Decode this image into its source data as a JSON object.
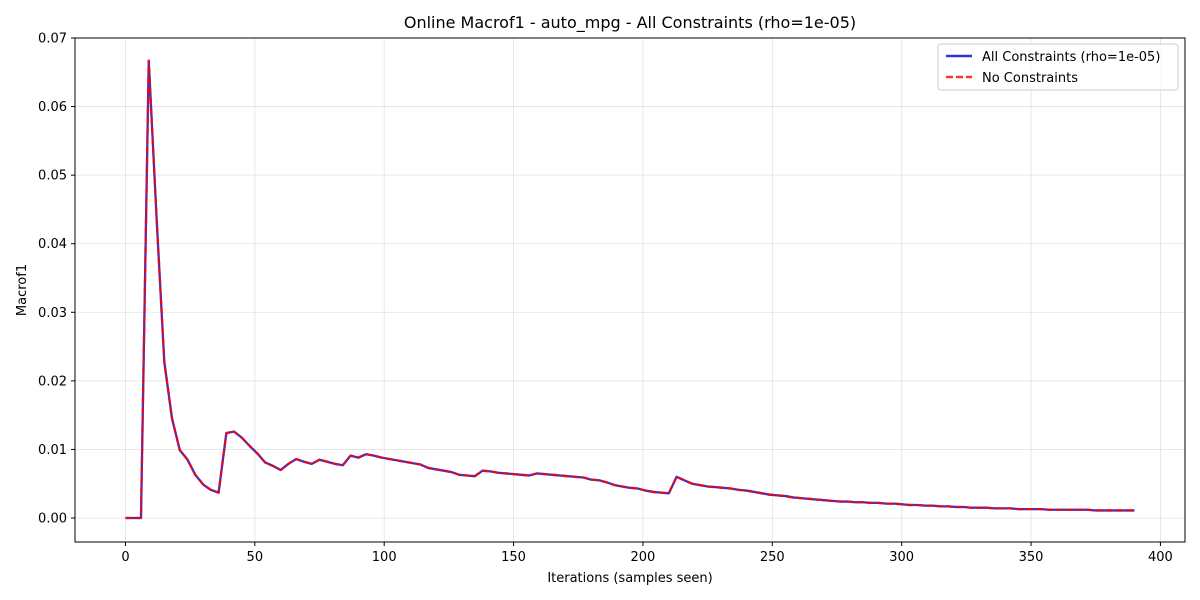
{
  "chart_data": {
    "type": "line",
    "title": "Online Macrof1 - auto_mpg - All Constraints (rho=1e-05)",
    "xlabel": "Iterations (samples seen)",
    "ylabel": "Macrof1",
    "xlim": [
      -19.5,
      409.5
    ],
    "ylim": [
      -0.0035,
      0.07
    ],
    "xticks": [
      0,
      50,
      100,
      150,
      200,
      250,
      300,
      350,
      400
    ],
    "yticks": [
      0.0,
      0.01,
      0.02,
      0.03,
      0.04,
      0.05,
      0.06,
      0.07
    ],
    "xtick_labels": [
      "0",
      "50",
      "100",
      "150",
      "200",
      "250",
      "300",
      "350",
      "400"
    ],
    "ytick_labels": [
      "0.00",
      "0.01",
      "0.02",
      "0.03",
      "0.04",
      "0.05",
      "0.06",
      "0.07"
    ],
    "grid": true,
    "legend_position": "top-right",
    "x": [
      0,
      3,
      6,
      9,
      12,
      15,
      18,
      21,
      24,
      27,
      30,
      33,
      36,
      39,
      42,
      45,
      48,
      51,
      54,
      57,
      60,
      63,
      66,
      69,
      72,
      75,
      78,
      81,
      84,
      87,
      90,
      93,
      96,
      99,
      102,
      105,
      108,
      111,
      114,
      117,
      120,
      123,
      126,
      129,
      132,
      135,
      138,
      141,
      144,
      147,
      150,
      153,
      156,
      159,
      162,
      165,
      168,
      171,
      174,
      177,
      180,
      183,
      186,
      189,
      192,
      195,
      198,
      201,
      204,
      207,
      210,
      213,
      216,
      219,
      222,
      225,
      228,
      231,
      234,
      237,
      240,
      243,
      246,
      249,
      252,
      255,
      258,
      261,
      264,
      267,
      270,
      273,
      276,
      279,
      282,
      285,
      288,
      291,
      294,
      297,
      300,
      303,
      306,
      309,
      312,
      315,
      318,
      321,
      324,
      327,
      330,
      333,
      336,
      339,
      342,
      345,
      348,
      351,
      354,
      357,
      360,
      363,
      366,
      369,
      372,
      375,
      378,
      381,
      384,
      387,
      390
    ],
    "series": [
      {
        "name": "All Constraints (rho=1e-05)",
        "color": "#0000cc",
        "style": "solid",
        "values": [
          0.0,
          0.0,
          0.0,
          0.0667,
          0.044,
          0.0228,
          0.0145,
          0.0099,
          0.0085,
          0.0063,
          0.0049,
          0.0041,
          0.0037,
          0.0124,
          0.0126,
          0.0117,
          0.0105,
          0.0094,
          0.0081,
          0.0076,
          0.007,
          0.0079,
          0.0086,
          0.0082,
          0.0079,
          0.0085,
          0.0082,
          0.0079,
          0.0077,
          0.0091,
          0.0088,
          0.0093,
          0.0091,
          0.0088,
          0.0086,
          0.0084,
          0.0082,
          0.008,
          0.0078,
          0.0073,
          0.0071,
          0.0069,
          0.0067,
          0.0063,
          0.0062,
          0.0061,
          0.0069,
          0.0068,
          0.0066,
          0.0065,
          0.0064,
          0.0063,
          0.0062,
          0.0065,
          0.0064,
          0.0063,
          0.0062,
          0.0061,
          0.006,
          0.0059,
          0.0056,
          0.0055,
          0.0052,
          0.0048,
          0.0046,
          0.0044,
          0.0043,
          0.004,
          0.0038,
          0.0037,
          0.0036,
          0.006,
          0.0055,
          0.005,
          0.0048,
          0.0046,
          0.0045,
          0.0044,
          0.0043,
          0.0041,
          0.004,
          0.0038,
          0.0036,
          0.0034,
          0.0033,
          0.0032,
          0.003,
          0.0029,
          0.0028,
          0.0027,
          0.0026,
          0.0025,
          0.0024,
          0.0024,
          0.0023,
          0.0023,
          0.0022,
          0.0022,
          0.0021,
          0.0021,
          0.002,
          0.0019,
          0.0019,
          0.0018,
          0.0018,
          0.0017,
          0.0017,
          0.0016,
          0.0016,
          0.0015,
          0.0015,
          0.0015,
          0.0014,
          0.0014,
          0.0014,
          0.0013,
          0.0013,
          0.0013,
          0.0013,
          0.0012,
          0.0012,
          0.0012,
          0.0012,
          0.0012,
          0.0012,
          0.0011,
          0.0011,
          0.0011,
          0.0011,
          0.0011,
          0.0011
        ]
      },
      {
        "name": "No Constraints",
        "color": "#ff0000",
        "style": "dashed",
        "values": [
          0.0,
          0.0,
          0.0,
          0.0667,
          0.044,
          0.0228,
          0.0145,
          0.0099,
          0.0085,
          0.0063,
          0.0049,
          0.0041,
          0.0037,
          0.0124,
          0.0126,
          0.0117,
          0.0105,
          0.0094,
          0.0081,
          0.0076,
          0.007,
          0.0079,
          0.0086,
          0.0082,
          0.0079,
          0.0085,
          0.0082,
          0.0079,
          0.0077,
          0.0091,
          0.0088,
          0.0093,
          0.0091,
          0.0088,
          0.0086,
          0.0084,
          0.0082,
          0.008,
          0.0078,
          0.0073,
          0.0071,
          0.0069,
          0.0067,
          0.0063,
          0.0062,
          0.0061,
          0.0069,
          0.0068,
          0.0066,
          0.0065,
          0.0064,
          0.0063,
          0.0062,
          0.0065,
          0.0064,
          0.0063,
          0.0062,
          0.0061,
          0.006,
          0.0059,
          0.0056,
          0.0055,
          0.0052,
          0.0048,
          0.0046,
          0.0044,
          0.0043,
          0.004,
          0.0038,
          0.0037,
          0.0036,
          0.006,
          0.0055,
          0.005,
          0.0048,
          0.0046,
          0.0045,
          0.0044,
          0.0043,
          0.0041,
          0.004,
          0.0038,
          0.0036,
          0.0034,
          0.0033,
          0.0032,
          0.003,
          0.0029,
          0.0028,
          0.0027,
          0.0026,
          0.0025,
          0.0024,
          0.0024,
          0.0023,
          0.0023,
          0.0022,
          0.0022,
          0.0021,
          0.0021,
          0.002,
          0.0019,
          0.0019,
          0.0018,
          0.0018,
          0.0017,
          0.0017,
          0.0016,
          0.0016,
          0.0015,
          0.0015,
          0.0015,
          0.0014,
          0.0014,
          0.0014,
          0.0013,
          0.0013,
          0.0013,
          0.0013,
          0.0012,
          0.0012,
          0.0012,
          0.0012,
          0.0012,
          0.0012,
          0.0011,
          0.0011,
          0.0011,
          0.0011,
          0.0011,
          0.0011
        ]
      }
    ]
  }
}
